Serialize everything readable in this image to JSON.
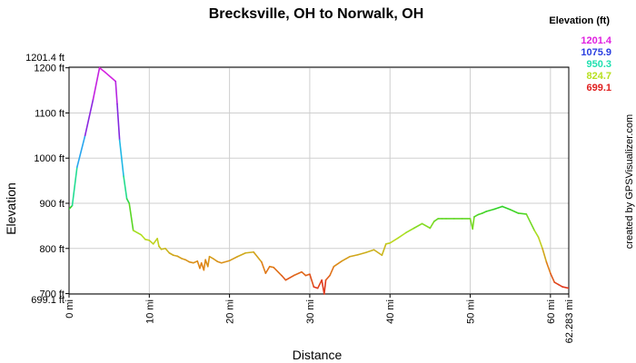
{
  "chart_data": {
    "type": "line",
    "title": "Brecksville, OH to Norwalk, OH",
    "xlabel": "Distance",
    "ylabel": "Elevation",
    "x_unit": "mi",
    "y_unit": "ft",
    "xlim": [
      0,
      62.283
    ],
    "ylim": [
      699.1,
      1201.4
    ],
    "x_ticks": [
      {
        "v": 0,
        "label": "0 mi"
      },
      {
        "v": 10,
        "label": "10 mi"
      },
      {
        "v": 20,
        "label": "20 mi"
      },
      {
        "v": 30,
        "label": "30 mi"
      },
      {
        "v": 40,
        "label": "40 mi"
      },
      {
        "v": 50,
        "label": "50 mi"
      },
      {
        "v": 60,
        "label": "60 mi"
      },
      {
        "v": 62.283,
        "label": "62.283 mi"
      }
    ],
    "y_ticks": [
      {
        "v": 700,
        "label": "700 ft"
      },
      {
        "v": 800,
        "label": "800 ft"
      },
      {
        "v": 900,
        "label": "900 ft"
      },
      {
        "v": 1000,
        "label": "1000 ft"
      },
      {
        "v": 1100,
        "label": "1100 ft"
      },
      {
        "v": 1200,
        "label": "1200 ft"
      }
    ],
    "y_extreme_labels": [
      {
        "v": 1201.4,
        "label": "1201.4 ft"
      },
      {
        "v": 699.1,
        "label": "699.1 ft"
      }
    ],
    "grid": true,
    "legend": {
      "title": "Elevation (ft)",
      "placement": "top-right",
      "entries": [
        {
          "label": "1201.4",
          "color": "#e020e0"
        },
        {
          "label": "1075.9",
          "color": "#2a3ee0"
        },
        {
          "label": "950.3",
          "color": "#20e0b0"
        },
        {
          "label": "824.7",
          "color": "#b8e020"
        },
        {
          "label": "699.1",
          "color": "#e02020"
        }
      ]
    },
    "series": [
      {
        "x": [
          0.0,
          0.4,
          1.0,
          2.0,
          3.0,
          3.8,
          4.5,
          5.8,
          6.0,
          6.3,
          6.8,
          7.2,
          7.5,
          8.0,
          9.0,
          9.5,
          10.0,
          10.5,
          11.0,
          11.2,
          11.5,
          12.0,
          12.5,
          13.0,
          13.5,
          14.0,
          14.5,
          15.0,
          15.5,
          16.0,
          16.3,
          16.5,
          16.8,
          17.0,
          17.3,
          17.5,
          18.0,
          18.5,
          19.0,
          20.0,
          21.0,
          22.0,
          23.0,
          24.0,
          24.5,
          25.0,
          25.5,
          26.5,
          27.0,
          28.0,
          29.0,
          29.5,
          30.0,
          30.5,
          31.0,
          31.5,
          31.8,
          32.0,
          32.5,
          33.0,
          34.0,
          35.0,
          36.0,
          37.0,
          38.0,
          39.0,
          39.5,
          40.0,
          41.0,
          42.0,
          43.0,
          44.0,
          45.0,
          45.5,
          46.0,
          46.5,
          47.0,
          48.0,
          49.0,
          50.0,
          50.3,
          50.5,
          51.0,
          51.5,
          52.0,
          53.0,
          54.0,
          55.0,
          56.0,
          57.0,
          58.0,
          58.5,
          59.0,
          59.5,
          60.0,
          60.5,
          61.0,
          61.5,
          62.283
        ],
        "y": [
          887,
          895,
          980,
          1050,
          1130,
          1200,
          1190,
          1170,
          1120,
          1040,
          960,
          910,
          900,
          840,
          830,
          820,
          818,
          810,
          822,
          805,
          798,
          800,
          790,
          785,
          783,
          778,
          775,
          770,
          768,
          772,
          756,
          768,
          752,
          775,
          760,
          782,
          777,
          771,
          768,
          773,
          782,
          790,
          792,
          770,
          745,
          760,
          758,
          740,
          730,
          740,
          748,
          740,
          743,
          715,
          712,
          730,
          699,
          730,
          740,
          760,
          772,
          782,
          786,
          791,
          797,
          785,
          810,
          812,
          823,
          835,
          845,
          855,
          845,
          860,
          866,
          866,
          866,
          866,
          866,
          866,
          843,
          870,
          875,
          878,
          882,
          887,
          893,
          886,
          878,
          876,
          840,
          825,
          800,
          770,
          745,
          725,
          720,
          715,
          712
        ]
      }
    ]
  },
  "credit_text": "created by GPSVisualizer.com"
}
